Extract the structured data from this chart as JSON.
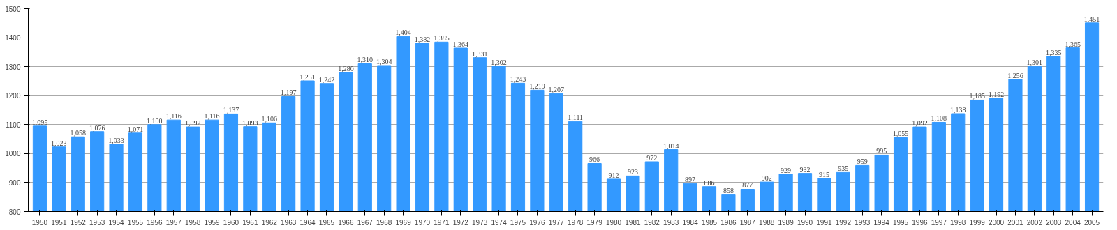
{
  "chart_data": {
    "type": "bar",
    "categories": [
      "1950",
      "1951",
      "1952",
      "1953",
      "1954",
      "1955",
      "1956",
      "1957",
      "1958",
      "1959",
      "1960",
      "1961",
      "1962",
      "1963",
      "1964",
      "1965",
      "1966",
      "1967",
      "1968",
      "1969",
      "1970",
      "1971",
      "1972",
      "1973",
      "1974",
      "1975",
      "1976",
      "1977",
      "1978",
      "1979",
      "1980",
      "1981",
      "1982",
      "1983",
      "1984",
      "1985",
      "1986",
      "1987",
      "1988",
      "1989",
      "1990",
      "1991",
      "1992",
      "1993",
      "1994",
      "1995",
      "1996",
      "1997",
      "1998",
      "1999",
      "2000",
      "2001",
      "2002",
      "2003",
      "2004",
      "2005"
    ],
    "values": [
      1095,
      1023,
      1058,
      1076,
      1033,
      1071,
      1100,
      1116,
      1092,
      1116,
      1137,
      1093,
      1106,
      1197,
      1251,
      1242,
      1280,
      1310,
      1304,
      1404,
      1382,
      1385,
      1364,
      1331,
      1302,
      1243,
      1219,
      1207,
      1111,
      966,
      912,
      923,
      972,
      1014,
      897,
      886,
      858,
      877,
      902,
      929,
      932,
      915,
      935,
      959,
      995,
      1055,
      1092,
      1108,
      1138,
      1185,
      1192,
      1256,
      1301,
      1335,
      1365,
      1451
    ],
    "value_labels": [
      "1,095",
      "1,023",
      "1,058",
      "1,076",
      "1,033",
      "1,071",
      "1,100",
      "1,116",
      "1,092",
      "1,116",
      "1,137",
      "1,093",
      "1,106",
      "1,197",
      "1,251",
      "1,242",
      "1,280",
      "1,310",
      "1,304",
      "1,404",
      "1,382",
      "1,385",
      "1,364",
      "1,331",
      "1,302",
      "1,243",
      "1,219",
      "1,207",
      "1,111",
      "966",
      "912",
      "923",
      "972",
      "1,014",
      "897",
      "886",
      "858",
      "877",
      "902",
      "929",
      "932",
      "915",
      "935",
      "959",
      "995",
      "1,055",
      "1,092",
      "1,108",
      "1,138",
      "1,185",
      "1,192",
      "1,256",
      "1,301",
      "1,335",
      "1,365",
      "1,451"
    ],
    "color": "#3399ff",
    "ylim": [
      800,
      1500
    ],
    "yticks": [
      800,
      900,
      1000,
      1100,
      1200,
      1300,
      1400,
      1500
    ],
    "grid": "y"
  }
}
